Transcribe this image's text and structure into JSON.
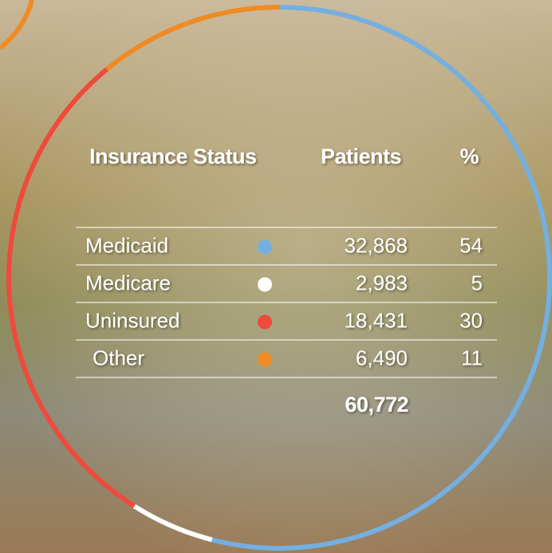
{
  "table": {
    "headers": [
      "Insurance Status",
      "Patients",
      "%"
    ],
    "rows": [
      {
        "label": "Medicaid",
        "color": "#74afe0",
        "patients": "32,868",
        "percent": 54
      },
      {
        "label": "Medicare",
        "color": "#ffffff",
        "patients": "2,983",
        "percent": 5
      },
      {
        "label": "Uninsured",
        "color": "#ef4a3c",
        "patients": "18,431",
        "percent": 30
      },
      {
        "label": "Other",
        "color": "#f08a24",
        "patients": "6,490",
        "percent": 11
      }
    ],
    "total": "60,772"
  }
}
